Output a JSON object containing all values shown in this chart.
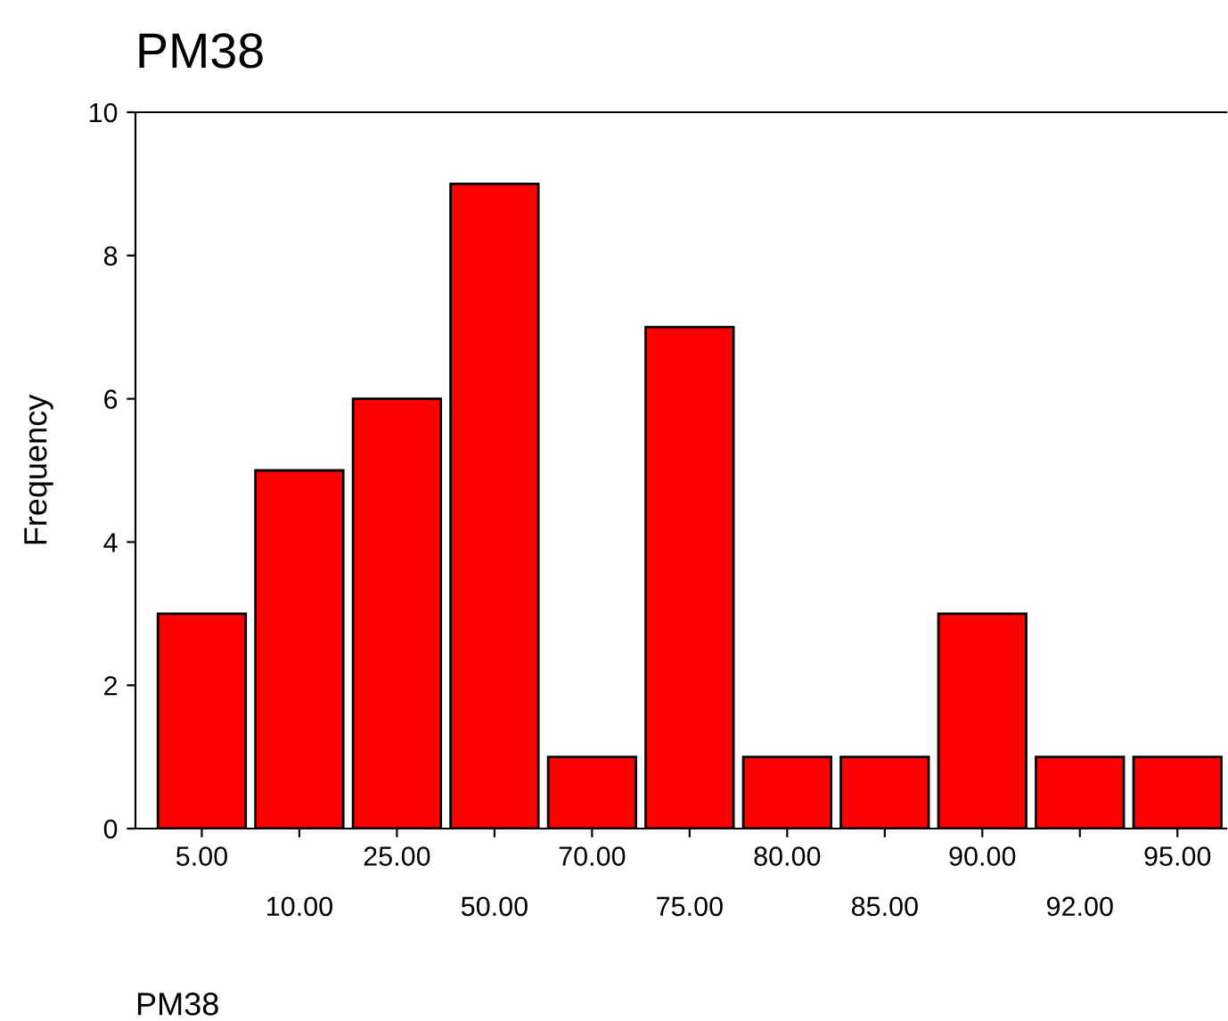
{
  "chart_data": {
    "type": "bar",
    "title": "PM38",
    "xlabel": "PM38",
    "ylabel": "Frequency",
    "categories": [
      "5.00",
      "10.00",
      "25.00",
      "50.00",
      "70.00",
      "75.00",
      "80.00",
      "85.00",
      "90.00",
      "92.00",
      "95.00"
    ],
    "values": [
      3,
      5,
      6,
      9,
      1,
      7,
      1,
      1,
      3,
      1,
      1
    ],
    "color": "#ff0000",
    "ylim": [
      0,
      10
    ],
    "yticks": [
      0,
      2,
      4,
      6,
      8,
      10
    ],
    "grid": false,
    "legend": false
  }
}
